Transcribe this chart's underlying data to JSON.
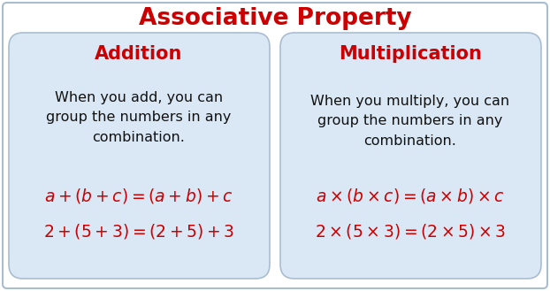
{
  "title": "Associative Property",
  "title_color": "#CC0000",
  "title_fontsize": 19,
  "background_color": "#FFFFFF",
  "box_bg_color": "#DAE8F5",
  "box_border_color": "#AABDD0",
  "outer_border_color": "#AABDD0",
  "left_heading": "Addition",
  "right_heading": "Multiplication",
  "heading_color": "#CC0000",
  "heading_fontsize": 15,
  "left_body": "When you add, you can\ngroup the numbers in any\ncombination.",
  "right_body": "When you multiply, you can\ngroup the numbers in any\ncombination.",
  "body_color": "#111111",
  "body_fontsize": 11.5,
  "left_formula1": "$a+(b+c)=(a+b)+c$",
  "left_formula2": "$2+(5+3)=(2+5)+3$",
  "right_formula1": "$a\\times(b\\times c)=(a\\times b)\\times c$",
  "right_formula2": "$2\\times(5\\times3)=(2\\times5)\\times3$",
  "formula_color": "#CC0000",
  "formula_fontsize": 13.5
}
